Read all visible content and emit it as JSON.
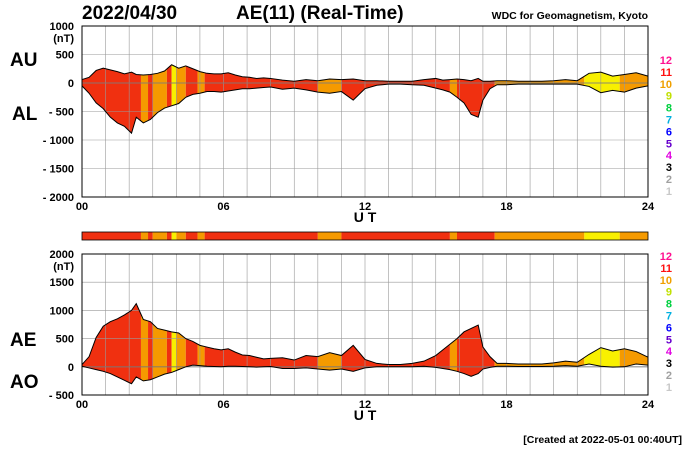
{
  "header": {
    "date": "2022/04/30",
    "title": "AE(11) (Real-Time)",
    "source": "WDC for Geomagnetism, Kyoto"
  },
  "footer": {
    "created": "[Created at 2022-05-01 00:40UT]"
  },
  "colors": {
    "1": "#c8c8c8",
    "2": "#a0a0a0",
    "3": "#000000",
    "4": "#e000e0",
    "5": "#6600cc",
    "6": "#0000ff",
    "7": "#00b0e0",
    "8": "#00d040",
    "9": "#c0e000",
    "10": "#f0a000",
    "11": "#ff1010",
    "12": "#ff1090",
    "chart_red": "#f03010",
    "chart_orange": "#f59a00",
    "chart_yellow": "#f8f000"
  },
  "level_legend": [
    "12",
    "11",
    "10",
    "9",
    "8",
    "7",
    "6",
    "5",
    "4",
    "3",
    "2",
    "1"
  ],
  "chart_data": [
    {
      "type": "area",
      "panel": "AU-AL",
      "labels": [
        "AU",
        "AL"
      ],
      "x_unit": "UT (hours)",
      "xlabel": "U T",
      "xlim": [
        0,
        24
      ],
      "x_ticks": [
        "00",
        "06",
        "12",
        "18",
        "24"
      ],
      "ylabel": "(nT)",
      "ylim": [
        -2000,
        1000
      ],
      "y_tick_labels": [
        "1000",
        "500",
        "0",
        "- 500",
        "- 1000",
        "- 1500",
        "- 2000"
      ],
      "grid": true,
      "x": [
        0,
        0.3,
        0.6,
        0.9,
        1.2,
        1.5,
        1.8,
        2.1,
        2.3,
        2.6,
        2.9,
        3.2,
        3.5,
        3.8,
        4.1,
        4.4,
        4.7,
        5.0,
        5.3,
        5.6,
        5.9,
        6.2,
        6.5,
        6.8,
        7.1,
        7.4,
        7.7,
        8.0,
        8.5,
        9.0,
        9.5,
        10.0,
        10.5,
        11.0,
        11.5,
        12.0,
        12.5,
        13.0,
        13.5,
        14.0,
        14.5,
        15.0,
        15.3,
        15.6,
        15.9,
        16.2,
        16.5,
        16.8,
        17.0,
        17.3,
        17.6,
        18.0,
        18.5,
        19.0,
        19.5,
        20.0,
        20.5,
        21.0,
        21.5,
        22.0,
        22.5,
        23.0,
        23.5,
        24.0
      ],
      "upper": [
        60,
        100,
        220,
        260,
        230,
        200,
        160,
        190,
        150,
        140,
        150,
        170,
        210,
        320,
        260,
        300,
        250,
        200,
        170,
        160,
        160,
        180,
        140,
        110,
        100,
        80,
        90,
        80,
        50,
        30,
        60,
        40,
        70,
        60,
        70,
        40,
        40,
        30,
        30,
        30,
        60,
        80,
        50,
        60,
        70,
        60,
        40,
        80,
        30,
        30,
        40,
        40,
        30,
        30,
        30,
        40,
        60,
        40,
        170,
        190,
        120,
        150,
        180,
        120
      ],
      "lower": [
        -50,
        -180,
        -350,
        -450,
        -600,
        -700,
        -760,
        -880,
        -600,
        -700,
        -640,
        -520,
        -440,
        -400,
        -360,
        -250,
        -200,
        -180,
        -150,
        -150,
        -160,
        -140,
        -120,
        -100,
        -100,
        -90,
        -80,
        -70,
        -110,
        -90,
        -120,
        -160,
        -180,
        -150,
        -300,
        -100,
        -40,
        -20,
        -20,
        -30,
        -40,
        -90,
        -120,
        -160,
        -250,
        -350,
        -550,
        -600,
        -300,
        -100,
        -30,
        -30,
        -20,
        -20,
        -20,
        -20,
        -20,
        -20,
        -60,
        -170,
        -130,
        -160,
        -90,
        -50
      ],
      "activity_segments": [
        {
          "from": 0,
          "to": 2.5,
          "level": "11"
        },
        {
          "from": 2.5,
          "to": 2.8,
          "level": "10"
        },
        {
          "from": 2.8,
          "to": 3.0,
          "level": "11"
        },
        {
          "from": 3.0,
          "to": 3.6,
          "level": "10"
        },
        {
          "from": 3.6,
          "to": 3.8,
          "level": "11"
        },
        {
          "from": 3.8,
          "to": 4.0,
          "level": "9"
        },
        {
          "from": 4.0,
          "to": 4.4,
          "level": "10"
        },
        {
          "from": 4.4,
          "to": 4.9,
          "level": "11"
        },
        {
          "from": 4.9,
          "to": 5.2,
          "level": "10"
        },
        {
          "from": 5.2,
          "to": 10.0,
          "level": "11"
        },
        {
          "from": 10.0,
          "to": 11.0,
          "level": "10"
        },
        {
          "from": 11.0,
          "to": 15.6,
          "level": "11"
        },
        {
          "from": 15.6,
          "to": 15.9,
          "level": "10"
        },
        {
          "from": 15.9,
          "to": 17.5,
          "level": "11"
        },
        {
          "from": 17.5,
          "to": 21.3,
          "level": "10"
        },
        {
          "from": 21.3,
          "to": 22.8,
          "level": "9"
        },
        {
          "from": 22.8,
          "to": 24.0,
          "level": "10"
        }
      ]
    },
    {
      "type": "area",
      "panel": "AE-AO",
      "labels": [
        "AE",
        "AO"
      ],
      "x_unit": "UT (hours)",
      "xlabel": "U T",
      "xlim": [
        0,
        24
      ],
      "x_ticks": [
        "00",
        "06",
        "12",
        "18",
        "24"
      ],
      "ylabel": "(nT)",
      "ylim": [
        -500,
        2000
      ],
      "y_tick_labels": [
        "2000",
        "1500",
        "1000",
        "500",
        "0",
        "- 500"
      ],
      "grid": true,
      "x": [
        0,
        0.3,
        0.6,
        0.9,
        1.2,
        1.5,
        1.8,
        2.1,
        2.3,
        2.6,
        2.9,
        3.2,
        3.5,
        3.8,
        4.1,
        4.4,
        4.7,
        5.0,
        5.3,
        5.6,
        5.9,
        6.2,
        6.5,
        6.8,
        7.1,
        7.4,
        7.7,
        8.0,
        8.5,
        9.0,
        9.5,
        10.0,
        10.5,
        11.0,
        11.5,
        12.0,
        12.5,
        13.0,
        13.5,
        14.0,
        14.5,
        15.0,
        15.3,
        15.6,
        15.9,
        16.2,
        16.5,
        16.8,
        17.0,
        17.3,
        17.6,
        18.0,
        18.5,
        19.0,
        19.5,
        20.0,
        20.5,
        21.0,
        21.5,
        22.0,
        22.5,
        23.0,
        23.5,
        24.0
      ],
      "upper": [
        40,
        180,
        520,
        720,
        800,
        850,
        920,
        1000,
        1120,
        840,
        800,
        680,
        650,
        620,
        600,
        500,
        450,
        380,
        350,
        320,
        300,
        320,
        260,
        210,
        200,
        170,
        140,
        150,
        160,
        120,
        200,
        180,
        250,
        200,
        380,
        130,
        60,
        40,
        40,
        60,
        100,
        200,
        300,
        400,
        500,
        620,
        680,
        740,
        350,
        180,
        60,
        60,
        50,
        50,
        50,
        70,
        100,
        80,
        220,
        340,
        280,
        320,
        270,
        170
      ],
      "lower": [
        10,
        -20,
        -50,
        -80,
        -120,
        -180,
        -240,
        -300,
        -180,
        -250,
        -230,
        -180,
        -130,
        -100,
        -50,
        0,
        30,
        20,
        10,
        5,
        0,
        10,
        10,
        5,
        0,
        -5,
        0,
        5,
        -30,
        -30,
        -20,
        -40,
        -60,
        -40,
        -80,
        -20,
        0,
        0,
        0,
        0,
        10,
        -10,
        -30,
        -50,
        -80,
        -120,
        -170,
        -120,
        -40,
        -10,
        10,
        10,
        5,
        5,
        5,
        10,
        20,
        10,
        50,
        10,
        -5,
        0,
        50,
        30
      ],
      "activity_segments": [
        {
          "from": 0,
          "to": 2.5,
          "level": "11"
        },
        {
          "from": 2.5,
          "to": 2.8,
          "level": "10"
        },
        {
          "from": 2.8,
          "to": 3.0,
          "level": "11"
        },
        {
          "from": 3.0,
          "to": 3.6,
          "level": "10"
        },
        {
          "from": 3.6,
          "to": 3.8,
          "level": "11"
        },
        {
          "from": 3.8,
          "to": 4.0,
          "level": "9"
        },
        {
          "from": 4.0,
          "to": 4.4,
          "level": "10"
        },
        {
          "from": 4.4,
          "to": 4.9,
          "level": "11"
        },
        {
          "from": 4.9,
          "to": 5.2,
          "level": "10"
        },
        {
          "from": 5.2,
          "to": 10.0,
          "level": "11"
        },
        {
          "from": 10.0,
          "to": 11.0,
          "level": "10"
        },
        {
          "from": 11.0,
          "to": 15.6,
          "level": "11"
        },
        {
          "from": 15.6,
          "to": 15.9,
          "level": "10"
        },
        {
          "from": 15.9,
          "to": 17.5,
          "level": "11"
        },
        {
          "from": 17.5,
          "to": 21.3,
          "level": "10"
        },
        {
          "from": 21.3,
          "to": 22.8,
          "level": "9"
        },
        {
          "from": 22.8,
          "to": 24.0,
          "level": "10"
        }
      ]
    }
  ]
}
